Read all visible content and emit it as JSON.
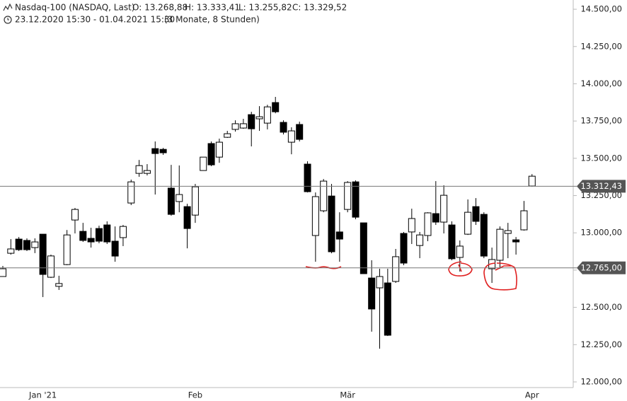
{
  "chart_data": {
    "type": "candlestick",
    "title": "Nasdaq-100 (NASDAQ, Last)",
    "ohlc_labels": [
      "O: 13.268,88",
      "H: 13.333,41",
      "L: 13.255,82",
      "C: 13.329,52"
    ],
    "period": "23.12.2020 15:30 - 01.04.2021 15:30",
    "interval": "(3 Monate, 8 Stunden)",
    "categories": [
      null,
      null,
      null,
      null,
      null,
      "Jan '21",
      null,
      null,
      null,
      null,
      null,
      null,
      null,
      null,
      null,
      null,
      null,
      null,
      null,
      null,
      null,
      null,
      null,
      null,
      "Feb",
      null,
      null,
      null,
      null,
      null,
      null,
      null,
      null,
      null,
      null,
      null,
      null,
      null,
      null,
      null,
      null,
      null,
      null,
      "Mär",
      null,
      null,
      null,
      null,
      null,
      null,
      null,
      null,
      null,
      null,
      null,
      null,
      null,
      null,
      null,
      null,
      null,
      null,
      null,
      null,
      null,
      null,
      "Apr"
    ],
    "open": [
      12707,
      12863,
      12958,
      12949,
      12901,
      12991,
      12702,
      12641,
      12787,
      13086,
      13010,
      12963,
      13029,
      13053,
      12944,
      12968,
      13200,
      13399,
      13399,
      13565,
      13560,
      13300,
      13210,
      13176,
      13119,
      13418,
      13599,
      13508,
      13641,
      13694,
      13703,
      13793,
      13765,
      13736,
      13874,
      13741,
      13608,
      13727,
      13461,
      12982,
      13148,
      13247,
      13006,
      13157,
      13342,
      13067,
      12697,
      12631,
      12664,
      12674,
      12996,
      13006,
      12915,
      12982,
      13129,
      13072,
      13053,
      12835,
      12991,
      13176,
      13124,
      12759,
      12816,
      12996,
      12953,
      13020,
      13314
    ],
    "high": [
      12778,
      12958,
      12972,
      12963,
      12963,
      12991,
      12854,
      12712,
      13019,
      13167,
      13067,
      13034,
      13048,
      13077,
      13043,
      13053,
      13357,
      13489,
      13461,
      13613,
      13570,
      13456,
      13452,
      13195,
      13328,
      13508,
      13613,
      13632,
      13684,
      13755,
      13765,
      13812,
      13850,
      13859,
      13912,
      13755,
      13708,
      13746,
      13480,
      13271,
      13361,
      13328,
      13138,
      13347,
      13352,
      13067,
      12816,
      12759,
      12759,
      12892,
      13006,
      13162,
      13006,
      13138,
      13347,
      13319,
      13077,
      12949,
      13224,
      13233,
      13138,
      12901,
      13043,
      13067,
      12972,
      13214,
      13394
    ],
    "low": [
      12707,
      12854,
      12878,
      12878,
      12864,
      12569,
      12697,
      12617,
      12783,
      12996,
      12939,
      12901,
      12930,
      12925,
      12806,
      12911,
      13186,
      13376,
      13385,
      13257,
      13523,
      13115,
      13138,
      12896,
      13067,
      13418,
      13447,
      13470,
      13637,
      13679,
      13698,
      13580,
      13684,
      13694,
      13802,
      13660,
      13527,
      13613,
      13271,
      12806,
      13138,
      12863,
      12806,
      13138,
      13091,
      12726,
      12337,
      12223,
      12308,
      12664,
      12783,
      12925,
      12830,
      12944,
      13053,
      12996,
      12816,
      12740,
      12986,
      13053,
      12830,
      12664,
      12759,
      12830,
      12854,
      13015,
      13309
    ],
    "close": [
      12759,
      12892,
      12887,
      12887,
      12939,
      12721,
      12845,
      12660,
      12986,
      13157,
      12949,
      12939,
      12944,
      12939,
      12844,
      13043,
      13342,
      13451,
      13418,
      13532,
      13537,
      13124,
      13257,
      13029,
      13309,
      13508,
      13456,
      13608,
      13665,
      13732,
      13732,
      13698,
      13779,
      13845,
      13812,
      13675,
      13684,
      13627,
      13276,
      13243,
      13347,
      12873,
      12958,
      13338,
      13105,
      12726,
      12489,
      12707,
      12313,
      12840,
      12797,
      13096,
      12986,
      13134,
      13072,
      13252,
      12826,
      12911,
      13138,
      13077,
      12844,
      12821,
      13024,
      13015,
      12939,
      13148,
      13380
    ],
    "up_color": "#ffffff",
    "down_color": "#000000",
    "ylim": [
      11962,
      14562
    ],
    "yticks": [
      {
        "value": 12000,
        "label": "12.000,00"
      },
      {
        "value": 12250,
        "label": "12.250,00"
      },
      {
        "value": 12500,
        "label": "12.500,00"
      },
      {
        "value": 12750,
        "label": "12.750,00"
      },
      {
        "value": 13000,
        "label": "13.000,00"
      },
      {
        "value": 13250,
        "label": "13.250,00"
      },
      {
        "value": 13500,
        "label": "13.500,00"
      },
      {
        "value": 13750,
        "label": "13.750,00"
      },
      {
        "value": 14000,
        "label": "14.000,00"
      },
      {
        "value": 14250,
        "label": "14.250,00"
      },
      {
        "value": 14500,
        "label": "14.500,00"
      }
    ],
    "hlines": [
      {
        "value": 13312.43,
        "label": "13.312,43"
      },
      {
        "value": 12765,
        "label": "12.765,00"
      }
    ]
  }
}
